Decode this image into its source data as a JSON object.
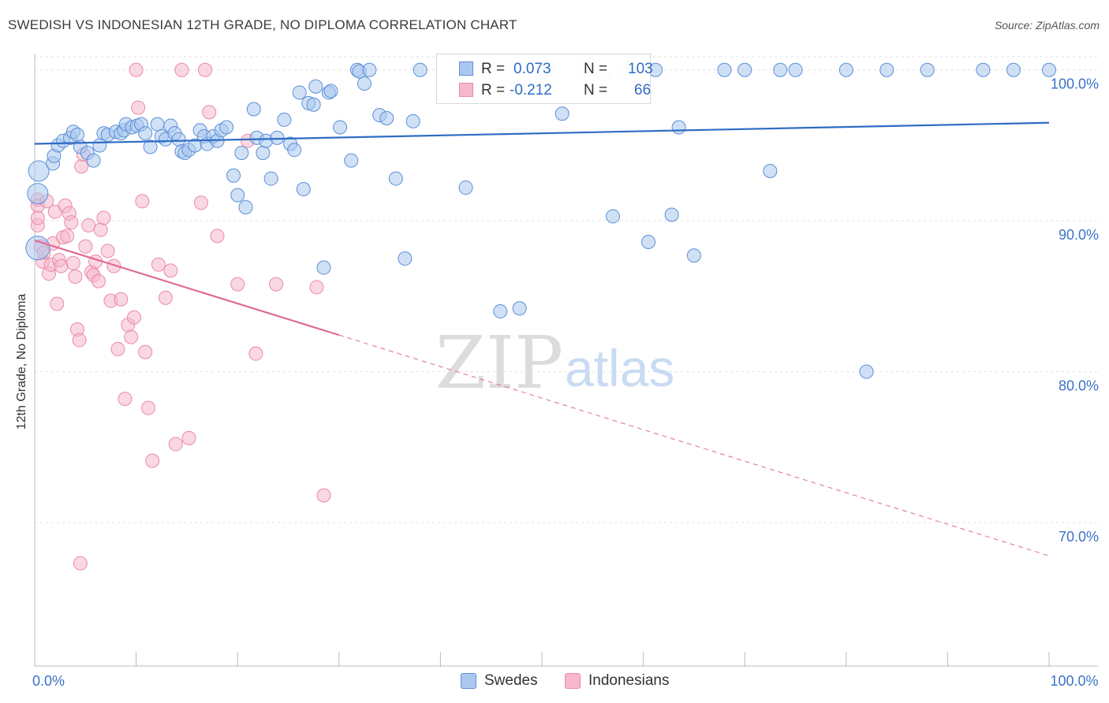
{
  "header": {
    "title": "SWEDISH VS INDONESIAN 12TH GRADE, NO DIPLOMA CORRELATION CHART",
    "source": "Source: ZipAtlas.com"
  },
  "watermark": {
    "zip": "ZIP",
    "atlas": "atlas"
  },
  "legend": {
    "rows": [
      {
        "r_label": "R =",
        "r_value": "0.073",
        "n_label": "N =",
        "n_value": "103"
      },
      {
        "r_label": "R =",
        "r_value": "-0.212",
        "n_label": "N =",
        "n_value": "66"
      }
    ]
  },
  "bottom_legend": {
    "swedes": "Swedes",
    "indonesians": "Indonesians"
  },
  "colors": {
    "swedes_fill": "#aac8ef",
    "swedes_stroke": "#5b8fd8",
    "swedes_line": "#2f6cc4",
    "indonesians_fill": "#f6b8ca",
    "indonesians_stroke": "#e98aa8",
    "indonesians_line": "#e06a93",
    "axis_text": "#3a72c8",
    "grid": "#e0e0e0"
  },
  "chart_data": {
    "type": "scatter",
    "title": "SWEDISH VS INDONESIAN 12TH GRADE, NO DIPLOMA CORRELATION CHART",
    "xlabel": "",
    "ylabel": "12th Grade, No Diploma",
    "xlim": [
      0,
      100
    ],
    "ylim": [
      60.5,
      101.5
    ],
    "x_tick_labels": [
      {
        "value": 0,
        "label": "0.0%"
      },
      {
        "value": 100,
        "label": "100.0%"
      }
    ],
    "y_tick_labels": [
      {
        "value": 100,
        "label": "100.0%"
      },
      {
        "value": 90,
        "label": "90.0%"
      },
      {
        "value": 80,
        "label": "80.0%"
      },
      {
        "value": 70,
        "label": "70.0%"
      }
    ],
    "grid": true,
    "legend_position": "top-center",
    "series": [
      {
        "name": "Swedes",
        "r": 0.073,
        "n": 103,
        "trend": {
          "x": [
            0,
            100
          ],
          "y": [
            95.1,
            96.5
          ],
          "dashed_from": null
        },
        "points": [
          [
            0.4,
            93.3
          ],
          [
            0.3,
            91.8
          ],
          [
            0.3,
            88.2
          ],
          [
            1.8,
            93.8
          ],
          [
            1.9,
            94.3
          ],
          [
            2.3,
            95.0
          ],
          [
            2.8,
            95.3
          ],
          [
            3.5,
            95.5
          ],
          [
            3.8,
            95.9
          ],
          [
            4.2,
            95.7
          ],
          [
            4.5,
            94.9
          ],
          [
            5.2,
            94.5
          ],
          [
            5.8,
            94.0
          ],
          [
            6.4,
            95.0
          ],
          [
            6.8,
            95.8
          ],
          [
            7.2,
            95.7
          ],
          [
            8.0,
            95.9
          ],
          [
            8.5,
            95.8
          ],
          [
            8.8,
            96.0
          ],
          [
            9.0,
            96.4
          ],
          [
            9.6,
            96.2
          ],
          [
            10.1,
            96.3
          ],
          [
            10.5,
            96.4
          ],
          [
            10.9,
            95.8
          ],
          [
            11.4,
            94.9
          ],
          [
            12.1,
            96.4
          ],
          [
            12.5,
            95.6
          ],
          [
            12.9,
            95.4
          ],
          [
            13.4,
            96.3
          ],
          [
            13.8,
            95.8
          ],
          [
            14.2,
            95.4
          ],
          [
            14.5,
            94.6
          ],
          [
            14.8,
            94.5
          ],
          [
            15.2,
            94.7
          ],
          [
            15.8,
            95.0
          ],
          [
            16.3,
            96.0
          ],
          [
            16.7,
            95.6
          ],
          [
            17.0,
            95.1
          ],
          [
            17.6,
            95.6
          ],
          [
            18.0,
            95.3
          ],
          [
            18.4,
            96.0
          ],
          [
            18.9,
            96.2
          ],
          [
            19.6,
            93.0
          ],
          [
            20.0,
            91.7
          ],
          [
            20.4,
            94.5
          ],
          [
            20.8,
            90.9
          ],
          [
            21.6,
            97.4
          ],
          [
            21.9,
            95.5
          ],
          [
            22.5,
            94.5
          ],
          [
            22.8,
            95.3
          ],
          [
            23.3,
            92.8
          ],
          [
            23.9,
            95.5
          ],
          [
            24.6,
            96.7
          ],
          [
            25.2,
            95.1
          ],
          [
            25.6,
            94.7
          ],
          [
            26.1,
            98.5
          ],
          [
            26.5,
            92.1
          ],
          [
            27.0,
            97.8
          ],
          [
            27.5,
            97.7
          ],
          [
            27.7,
            98.9
          ],
          [
            28.5,
            86.9
          ],
          [
            29.0,
            98.5
          ],
          [
            29.2,
            98.6
          ],
          [
            30.1,
            96.2
          ],
          [
            31.2,
            94.0
          ],
          [
            31.8,
            100.0
          ],
          [
            32.0,
            99.9
          ],
          [
            32.5,
            99.1
          ],
          [
            33.0,
            100.0
          ],
          [
            34.0,
            97.0
          ],
          [
            34.7,
            96.8
          ],
          [
            35.6,
            92.8
          ],
          [
            36.5,
            87.5
          ],
          [
            37.3,
            96.6
          ],
          [
            38.0,
            100.0
          ],
          [
            42.5,
            92.2
          ],
          [
            45.9,
            84.0
          ],
          [
            47.8,
            84.2
          ],
          [
            49.7,
            99.8
          ],
          [
            50.2,
            99.9
          ],
          [
            50.7,
            100.0
          ],
          [
            52.0,
            97.1
          ],
          [
            54.0,
            100.0
          ],
          [
            56.0,
            99.7
          ],
          [
            57.0,
            90.3
          ],
          [
            58.0,
            99.8
          ],
          [
            60.5,
            88.6
          ],
          [
            61.2,
            100.0
          ],
          [
            62.8,
            90.4
          ],
          [
            63.5,
            96.2
          ],
          [
            65.0,
            87.7
          ],
          [
            70.0,
            100.0
          ],
          [
            72.5,
            93.3
          ],
          [
            73.5,
            100.0
          ],
          [
            75.0,
            100.0
          ],
          [
            80.0,
            100.0
          ],
          [
            82.0,
            80.0
          ],
          [
            88.0,
            100.0
          ],
          [
            93.5,
            100.0
          ],
          [
            100.0,
            100.0
          ],
          [
            96.5,
            100.0
          ],
          [
            84.0,
            100.0
          ],
          [
            68.0,
            100.0
          ]
        ]
      },
      {
        "name": "Indonesians",
        "r": -0.212,
        "n": 66,
        "trend": {
          "x": [
            0,
            100
          ],
          "y": [
            88.7,
            67.8
          ],
          "dashed_from": 30
        },
        "points": [
          [
            0.3,
            91.4
          ],
          [
            0.3,
            91.0
          ],
          [
            0.3,
            89.7
          ],
          [
            0.3,
            90.2
          ],
          [
            0.6,
            88.3
          ],
          [
            0.8,
            87.3
          ],
          [
            0.9,
            87.9
          ],
          [
            1.2,
            91.3
          ],
          [
            1.4,
            86.5
          ],
          [
            1.6,
            87.1
          ],
          [
            1.8,
            88.5
          ],
          [
            2.0,
            90.6
          ],
          [
            2.2,
            84.5
          ],
          [
            2.4,
            87.4
          ],
          [
            2.6,
            87.0
          ],
          [
            2.8,
            88.9
          ],
          [
            3.0,
            91.0
          ],
          [
            3.2,
            89.0
          ],
          [
            3.4,
            90.5
          ],
          [
            3.6,
            89.9
          ],
          [
            3.8,
            87.2
          ],
          [
            4.0,
            86.3
          ],
          [
            4.2,
            82.8
          ],
          [
            4.4,
            82.1
          ],
          [
            4.6,
            93.6
          ],
          [
            4.8,
            94.4
          ],
          [
            5.0,
            88.3
          ],
          [
            5.3,
            89.7
          ],
          [
            5.6,
            86.6
          ],
          [
            5.8,
            86.4
          ],
          [
            6.0,
            87.3
          ],
          [
            6.3,
            86.0
          ],
          [
            6.5,
            89.4
          ],
          [
            6.8,
            90.2
          ],
          [
            7.2,
            88.0
          ],
          [
            7.5,
            84.7
          ],
          [
            7.8,
            87.0
          ],
          [
            8.2,
            81.5
          ],
          [
            8.5,
            84.8
          ],
          [
            8.9,
            78.2
          ],
          [
            9.2,
            83.1
          ],
          [
            9.5,
            82.3
          ],
          [
            9.8,
            83.6
          ],
          [
            10.0,
            100.0
          ],
          [
            10.2,
            97.5
          ],
          [
            10.6,
            91.3
          ],
          [
            10.9,
            81.3
          ],
          [
            11.2,
            77.6
          ],
          [
            11.6,
            74.1
          ],
          [
            12.2,
            87.1
          ],
          [
            12.9,
            84.9
          ],
          [
            13.4,
            86.7
          ],
          [
            13.9,
            75.2
          ],
          [
            14.5,
            100.0
          ],
          [
            15.2,
            75.6
          ],
          [
            16.4,
            91.2
          ],
          [
            16.8,
            100.0
          ],
          [
            17.2,
            97.2
          ],
          [
            18.0,
            89.0
          ],
          [
            20.0,
            85.8
          ],
          [
            21.0,
            95.3
          ],
          [
            21.8,
            81.2
          ],
          [
            23.8,
            85.8
          ],
          [
            27.8,
            85.6
          ],
          [
            28.5,
            71.8
          ],
          [
            4.5,
            67.3
          ]
        ]
      }
    ]
  }
}
